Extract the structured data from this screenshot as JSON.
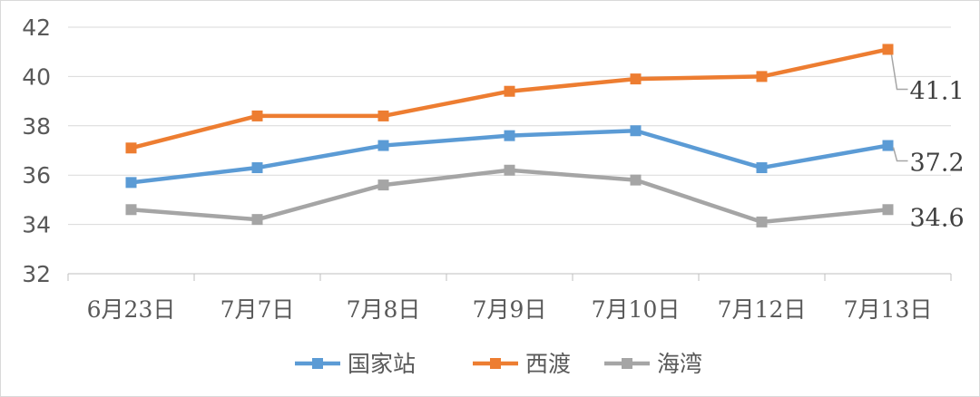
{
  "chart_data": {
    "type": "line",
    "title": "",
    "xlabel": "",
    "ylabel": "",
    "categories": [
      "6月23日",
      "7月7日",
      "7月8日",
      "7月9日",
      "7月10日",
      "7月12日",
      "7月13日"
    ],
    "ylim": [
      32,
      42
    ],
    "yticks": [
      32,
      34,
      36,
      38,
      40,
      42
    ],
    "grid": true,
    "legend_position": "bottom",
    "series": [
      {
        "name": "国家站",
        "color": "#5B9BD5",
        "values": [
          35.7,
          36.3,
          37.2,
          37.6,
          37.8,
          36.3,
          37.2
        ]
      },
      {
        "name": "西渡",
        "color": "#ED7D31",
        "values": [
          37.1,
          38.4,
          38.4,
          39.4,
          39.9,
          40.0,
          41.1
        ]
      },
      {
        "name": "海湾",
        "color": "#A5A5A5",
        "values": [
          34.6,
          34.2,
          35.6,
          36.2,
          35.8,
          34.1,
          34.6
        ]
      }
    ],
    "data_labels": [
      {
        "series": 1,
        "index": 6,
        "text": "41.1"
      },
      {
        "series": 0,
        "index": 6,
        "text": "37.2"
      },
      {
        "series": 2,
        "index": 6,
        "text": "34.6"
      }
    ]
  }
}
